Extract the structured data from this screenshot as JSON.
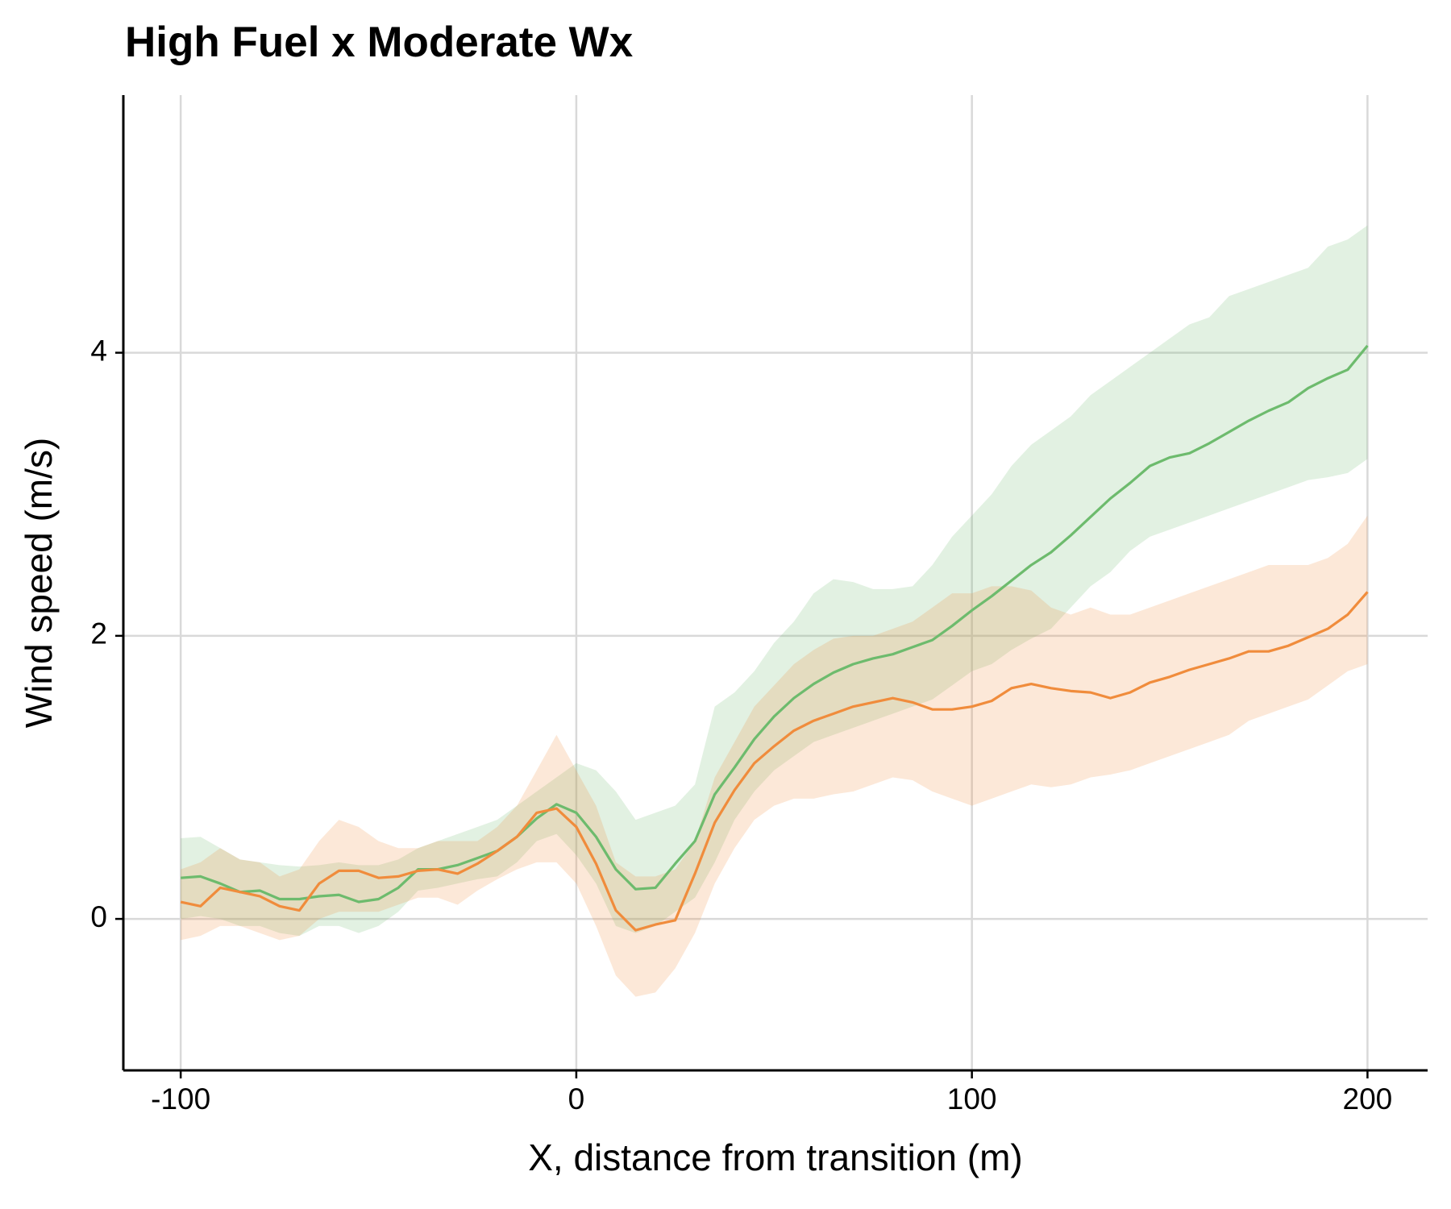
{
  "chart_data": {
    "type": "line",
    "title": "High Fuel x Moderate Wx",
    "x_label": "X, distance from transition (m)",
    "y_label": "Wind speed (m/s)",
    "x": [
      -100,
      -95,
      -90,
      -85,
      -80,
      -75,
      -70,
      -65,
      -60,
      -55,
      -50,
      -45,
      -40,
      -35,
      -30,
      -25,
      -20,
      -15,
      -10,
      -5,
      0,
      5,
      10,
      15,
      20,
      25,
      30,
      35,
      40,
      45,
      50,
      55,
      60,
      65,
      70,
      75,
      80,
      85,
      90,
      95,
      100,
      105,
      110,
      115,
      120,
      125,
      130,
      135,
      140,
      145,
      150,
      155,
      160,
      165,
      170,
      175,
      180,
      185,
      190,
      195,
      200
    ],
    "series": [
      {
        "color": "#6dbb6d",
        "values": [
          0.29,
          0.3,
          0.25,
          0.19,
          0.2,
          0.14,
          0.14,
          0.16,
          0.17,
          0.12,
          0.14,
          0.22,
          0.35,
          0.35,
          0.38,
          0.43,
          0.48,
          0.58,
          0.71,
          0.81,
          0.75,
          0.58,
          0.35,
          0.21,
          0.22,
          0.39,
          0.55,
          0.88,
          1.07,
          1.27,
          1.43,
          1.56,
          1.66,
          1.74,
          1.8,
          1.84,
          1.87,
          1.92,
          1.97,
          2.07,
          2.18,
          2.28,
          2.39,
          2.5,
          2.59,
          2.71,
          2.84,
          2.97,
          3.08,
          3.2,
          3.26,
          3.29,
          3.36,
          3.44,
          3.52,
          3.59,
          3.65,
          3.75,
          3.82,
          3.88,
          4.05
        ],
        "upper": [
          0.57,
          0.58,
          0.5,
          0.42,
          0.4,
          0.38,
          0.37,
          0.38,
          0.4,
          0.38,
          0.38,
          0.42,
          0.5,
          0.55,
          0.6,
          0.65,
          0.7,
          0.8,
          0.9,
          1.0,
          1.1,
          1.05,
          0.9,
          0.7,
          0.75,
          0.8,
          0.95,
          1.5,
          1.6,
          1.75,
          1.95,
          2.1,
          2.3,
          2.4,
          2.38,
          2.33,
          2.33,
          2.35,
          2.5,
          2.7,
          2.85,
          3.0,
          3.2,
          3.35,
          3.45,
          3.55,
          3.7,
          3.8,
          3.9,
          4.0,
          4.1,
          4.2,
          4.25,
          4.4,
          4.45,
          4.5,
          4.55,
          4.6,
          4.75,
          4.8,
          4.9
        ],
        "lower": [
          0.0,
          0.02,
          0.0,
          -0.05,
          -0.05,
          -0.1,
          -0.12,
          -0.05,
          -0.05,
          -0.1,
          -0.05,
          0.05,
          0.2,
          0.22,
          0.25,
          0.28,
          0.3,
          0.4,
          0.55,
          0.6,
          0.45,
          0.25,
          -0.05,
          -0.1,
          -0.05,
          0.05,
          0.15,
          0.4,
          0.7,
          0.9,
          1.05,
          1.15,
          1.25,
          1.3,
          1.35,
          1.4,
          1.45,
          1.5,
          1.55,
          1.65,
          1.75,
          1.8,
          1.9,
          1.98,
          2.05,
          2.2,
          2.35,
          2.45,
          2.6,
          2.7,
          2.75,
          2.8,
          2.85,
          2.9,
          2.95,
          3.0,
          3.05,
          3.1,
          3.12,
          3.15,
          3.25
        ]
      },
      {
        "color": "#f08c3c",
        "values": [
          0.12,
          0.09,
          0.22,
          0.19,
          0.16,
          0.09,
          0.06,
          0.25,
          0.34,
          0.34,
          0.29,
          0.3,
          0.34,
          0.35,
          0.32,
          0.39,
          0.48,
          0.58,
          0.75,
          0.78,
          0.65,
          0.39,
          0.06,
          -0.08,
          -0.04,
          -0.01,
          0.32,
          0.68,
          0.91,
          1.1,
          1.22,
          1.33,
          1.4,
          1.45,
          1.5,
          1.53,
          1.56,
          1.53,
          1.48,
          1.48,
          1.5,
          1.54,
          1.63,
          1.66,
          1.63,
          1.61,
          1.6,
          1.56,
          1.6,
          1.67,
          1.71,
          1.76,
          1.8,
          1.84,
          1.89,
          1.89,
          1.93,
          1.99,
          2.05,
          2.15,
          2.31
        ],
        "upper": [
          0.35,
          0.4,
          0.5,
          0.42,
          0.4,
          0.3,
          0.35,
          0.55,
          0.7,
          0.65,
          0.55,
          0.5,
          0.5,
          0.55,
          0.55,
          0.55,
          0.65,
          0.8,
          1.05,
          1.3,
          1.05,
          0.8,
          0.4,
          0.3,
          0.3,
          0.35,
          0.55,
          1.0,
          1.25,
          1.5,
          1.65,
          1.8,
          1.9,
          1.98,
          2.0,
          2.0,
          2.05,
          2.1,
          2.2,
          2.3,
          2.3,
          2.35,
          2.35,
          2.32,
          2.2,
          2.15,
          2.2,
          2.15,
          2.15,
          2.2,
          2.25,
          2.3,
          2.35,
          2.4,
          2.45,
          2.5,
          2.5,
          2.5,
          2.55,
          2.65,
          2.85
        ],
        "lower": [
          -0.15,
          -0.12,
          -0.05,
          -0.05,
          -0.1,
          -0.15,
          -0.12,
          0.0,
          0.05,
          0.05,
          0.05,
          0.1,
          0.15,
          0.15,
          0.1,
          0.2,
          0.28,
          0.35,
          0.4,
          0.4,
          0.25,
          -0.05,
          -0.4,
          -0.55,
          -0.52,
          -0.35,
          -0.1,
          0.25,
          0.5,
          0.7,
          0.8,
          0.85,
          0.85,
          0.88,
          0.9,
          0.95,
          1.0,
          0.98,
          0.9,
          0.85,
          0.8,
          0.85,
          0.9,
          0.95,
          0.93,
          0.95,
          1.0,
          1.02,
          1.05,
          1.1,
          1.15,
          1.2,
          1.25,
          1.3,
          1.4,
          1.45,
          1.5,
          1.55,
          1.65,
          1.75,
          1.8
        ]
      }
    ],
    "band_opacity": 0.2,
    "xlim": [
      -114.5,
      215.2
    ],
    "ylim": [
      -1.07,
      5.82
    ],
    "xticks": [
      -100,
      0,
      100,
      200
    ],
    "yticks": [
      0,
      2,
      4
    ],
    "grid": true
  }
}
